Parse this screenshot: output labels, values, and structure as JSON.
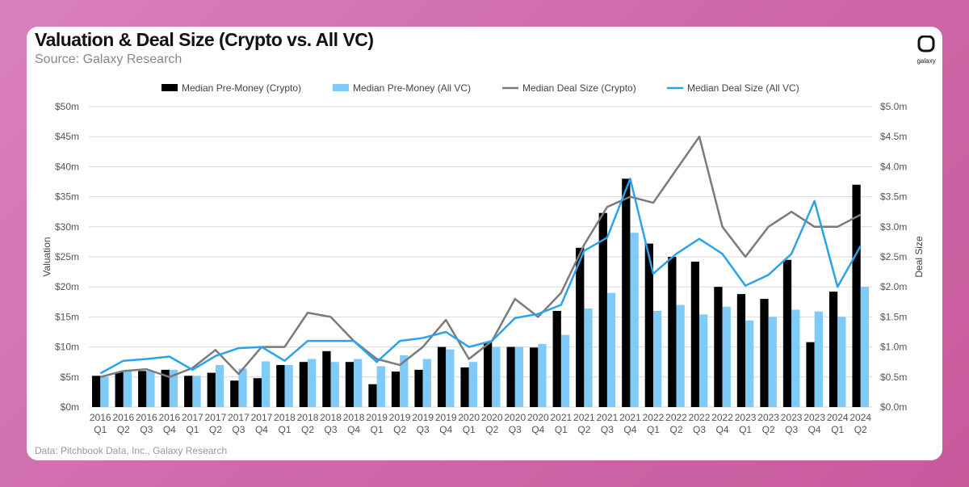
{
  "header": {
    "title": "Valuation & Deal Size (Crypto vs. All VC)",
    "subtitle": "Source: Galaxy Research",
    "logo_text": "galaxy"
  },
  "footer": {
    "note": "Data: Pitchbook Data, Inc., Galaxy Research"
  },
  "colors": {
    "crypto_bar": "#000000",
    "allvc_bar": "#7fcaf7",
    "crypto_line": "#7a7a7a",
    "allvc_line": "#2aa3ef"
  },
  "chart_data": {
    "type": "bar+line",
    "title": "Valuation & Deal Size (Crypto vs. All VC)",
    "ylabel": "Valuation",
    "y2label": "Deal Size",
    "ylim": [
      0,
      50
    ],
    "y2lim": [
      0,
      5
    ],
    "yticks": [
      "$0m",
      "$5m",
      "$10m",
      "$15m",
      "$20m",
      "$25m",
      "$30m",
      "$35m",
      "$40m",
      "$45m",
      "$50m"
    ],
    "y2ticks": [
      "$0.0m",
      "$0.5m",
      "$1.0m",
      "$1.5m",
      "$2.0m",
      "$2.5m",
      "$3.0m",
      "$3.5m",
      "$4.0m",
      "$4.5m",
      "$5.0m"
    ],
    "grid": true,
    "legend": "top",
    "categories": [
      [
        "2016",
        "Q1"
      ],
      [
        "2016",
        "Q2"
      ],
      [
        "2016",
        "Q3"
      ],
      [
        "2016",
        "Q4"
      ],
      [
        "2017",
        "Q1"
      ],
      [
        "2017",
        "Q2"
      ],
      [
        "2017",
        "Q3"
      ],
      [
        "2017",
        "Q4"
      ],
      [
        "2018",
        "Q1"
      ],
      [
        "2018",
        "Q2"
      ],
      [
        "2018",
        "Q3"
      ],
      [
        "2018",
        "Q4"
      ],
      [
        "2019",
        "Q1"
      ],
      [
        "2019",
        "Q2"
      ],
      [
        "2019",
        "Q3"
      ],
      [
        "2019",
        "Q4"
      ],
      [
        "2020",
        "Q1"
      ],
      [
        "2020",
        "Q2"
      ],
      [
        "2020",
        "Q3"
      ],
      [
        "2020",
        "Q4"
      ],
      [
        "2021",
        "Q1"
      ],
      [
        "2021",
        "Q2"
      ],
      [
        "2021",
        "Q3"
      ],
      [
        "2021",
        "Q4"
      ],
      [
        "2022",
        "Q1"
      ],
      [
        "2022",
        "Q2"
      ],
      [
        "2022",
        "Q3"
      ],
      [
        "2022",
        "Q4"
      ],
      [
        "2023",
        "Q1"
      ],
      [
        "2023",
        "Q2"
      ],
      [
        "2023",
        "Q3"
      ],
      [
        "2023",
        "Q4"
      ],
      [
        "2024",
        "Q1"
      ],
      [
        "2024",
        "Q2"
      ]
    ],
    "series": [
      {
        "name": "Median Pre-Money (Crypto)",
        "type": "bar",
        "axis": "left",
        "values": [
          5.2,
          5.8,
          6.0,
          6.2,
          5.2,
          5.7,
          4.4,
          4.8,
          7.0,
          7.5,
          9.3,
          7.5,
          3.8,
          5.9,
          6.2,
          10.0,
          6.6,
          10.8,
          10.0,
          9.9,
          16.0,
          26.5,
          32.3,
          38.0,
          27.2,
          25.0,
          24.2,
          20.0,
          18.8,
          18.0,
          24.5,
          10.8,
          19.2,
          37.0
        ]
      },
      {
        "name": "Median Pre-Money (All VC)",
        "type": "bar",
        "axis": "left",
        "values": [
          5.0,
          6.0,
          6.0,
          6.2,
          5.2,
          7.0,
          6.4,
          7.6,
          7.0,
          8.0,
          7.5,
          8.0,
          6.8,
          8.6,
          8.0,
          9.6,
          7.5,
          10.0,
          10.0,
          10.5,
          12.0,
          16.4,
          19.0,
          29.0,
          16.0,
          17.0,
          15.4,
          16.7,
          14.4,
          15.0,
          16.2,
          15.9,
          15.0,
          20.0
        ]
      },
      {
        "name": "Median Deal Size (Crypto)",
        "type": "line",
        "axis": "right",
        "values": [
          0.5,
          0.6,
          0.63,
          0.5,
          0.65,
          0.95,
          0.55,
          1.0,
          1.0,
          1.57,
          1.5,
          1.1,
          0.8,
          0.7,
          1.0,
          1.45,
          0.8,
          1.1,
          1.8,
          1.5,
          1.9,
          2.7,
          3.33,
          3.5,
          3.4,
          3.95,
          4.5,
          3.0,
          2.5,
          3.0,
          3.25,
          3.0,
          3.0,
          3.2
        ]
      },
      {
        "name": "Median Deal Size (All VC)",
        "type": "line",
        "axis": "right",
        "values": [
          0.56,
          0.77,
          0.8,
          0.84,
          0.62,
          0.85,
          0.98,
          1.0,
          0.77,
          1.1,
          1.1,
          1.1,
          0.75,
          1.1,
          1.15,
          1.25,
          1.0,
          1.1,
          1.48,
          1.55,
          1.7,
          2.6,
          2.82,
          3.8,
          2.22,
          2.55,
          2.8,
          2.55,
          2.02,
          2.2,
          2.55,
          3.43,
          2.0,
          2.68
        ]
      }
    ]
  }
}
